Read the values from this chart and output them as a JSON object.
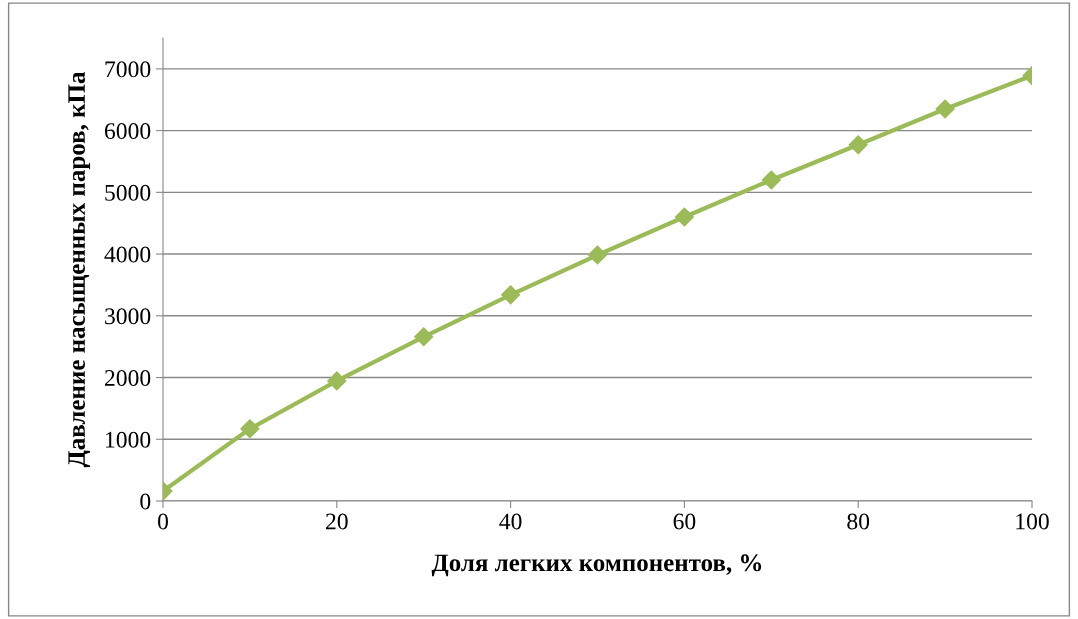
{
  "chart_data": {
    "type": "line",
    "xlabel": "Доля легких компонентов, %",
    "ylabel": "Давление насыщенных паров, кПа",
    "x": [
      0,
      10,
      20,
      30,
      40,
      50,
      60,
      70,
      80,
      90,
      100
    ],
    "series": [
      {
        "color": "#9bbb59",
        "values": [
          160,
          1170,
          1945,
          2660,
          3340,
          3985,
          4600,
          5200,
          5770,
          6350,
          6890
        ]
      }
    ],
    "xlim": [
      0,
      100
    ],
    "xticks": [
      0,
      20,
      40,
      60,
      80,
      100
    ],
    "ylim": [
      0,
      7500
    ],
    "yticks": [
      0,
      1000,
      2000,
      3000,
      4000,
      5000,
      6000,
      7000
    ],
    "grid": "y",
    "marker": "diamond",
    "line_style": "solid",
    "legend": false
  }
}
